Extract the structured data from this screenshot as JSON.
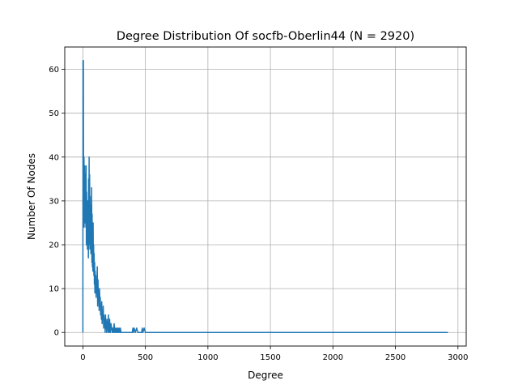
{
  "chart_data": {
    "type": "line",
    "title": "Degree Distribution Of socfb-Oberlin44 (N = 2920)",
    "xlabel": "Degree",
    "ylabel": "Number Of Nodes",
    "xlim": [
      -145,
      3066
    ],
    "ylim": [
      -3.1,
      65.1
    ],
    "xticks": [
      0,
      500,
      1000,
      1500,
      2000,
      2500,
      3000
    ],
    "yticks": [
      0,
      10,
      20,
      30,
      40,
      50,
      60
    ],
    "grid": true,
    "legend": "none",
    "line_color": "#1f77b4",
    "series": [
      {
        "x": [
          0,
          1,
          2,
          3,
          4,
          5,
          6,
          7,
          8,
          9,
          10,
          11,
          12,
          13,
          14,
          15,
          16,
          17,
          18,
          19,
          20,
          22,
          24,
          26,
          28,
          30,
          32,
          34,
          36,
          38,
          40,
          42,
          44,
          46,
          48,
          50,
          52,
          54,
          56,
          58,
          60,
          62,
          64,
          66,
          68,
          70,
          72,
          74,
          76,
          78,
          80,
          82,
          84,
          86,
          88,
          90,
          92,
          94,
          96,
          98,
          100,
          103,
          106,
          109,
          112,
          115,
          118,
          121,
          124,
          127,
          130,
          133,
          136,
          139,
          142,
          145,
          148,
          151,
          154,
          157,
          160,
          163,
          166,
          169,
          172,
          175,
          178,
          181,
          184,
          187,
          190,
          193,
          196,
          199,
          202,
          205,
          208,
          211,
          214,
          217,
          220,
          225,
          230,
          235,
          240,
          245,
          250,
          255,
          260,
          265,
          270,
          275,
          280,
          285,
          290,
          295,
          300,
          305,
          310,
          320,
          330,
          340,
          350,
          360,
          370,
          380,
          390,
          395,
          400,
          405,
          410,
          420,
          430,
          440,
          450,
          460,
          470,
          475,
          480,
          490,
          500,
          600,
          800,
          1000,
          1500,
          2000,
          2500,
          2920
        ],
        "y": [
          0,
          62,
          41,
          50,
          62,
          37,
          28,
          33,
          26,
          40,
          24,
          35,
          31,
          37,
          29,
          38,
          27,
          33,
          25,
          36,
          30,
          34,
          24,
          38,
          20,
          32,
          27,
          26,
          19,
          30,
          22,
          29,
          17,
          35,
          24,
          40,
          20,
          36,
          19,
          31,
          24,
          26,
          18,
          29,
          21,
          33,
          16,
          27,
          15,
          22,
          14,
          25,
          16,
          20,
          13,
          18,
          11,
          16,
          9,
          14,
          12,
          13,
          8,
          11,
          10,
          15,
          6,
          12,
          8,
          9,
          5,
          10,
          7,
          8,
          4,
          6,
          3,
          7,
          2,
          5,
          3,
          6,
          1,
          4,
          2,
          3,
          0,
          4,
          1,
          2,
          0,
          3,
          1,
          2,
          0,
          4,
          1,
          0,
          3,
          1,
          0,
          2,
          1,
          0,
          1,
          0,
          2,
          0,
          1,
          0,
          1,
          0,
          1,
          0,
          1,
          0,
          1,
          0,
          0,
          0,
          0,
          0,
          0,
          0,
          0,
          0,
          0,
          0,
          1,
          0,
          1,
          0,
          1,
          0,
          0,
          0,
          0,
          1,
          0,
          1,
          0,
          0,
          0,
          0,
          0,
          0,
          0,
          0
        ]
      }
    ]
  }
}
